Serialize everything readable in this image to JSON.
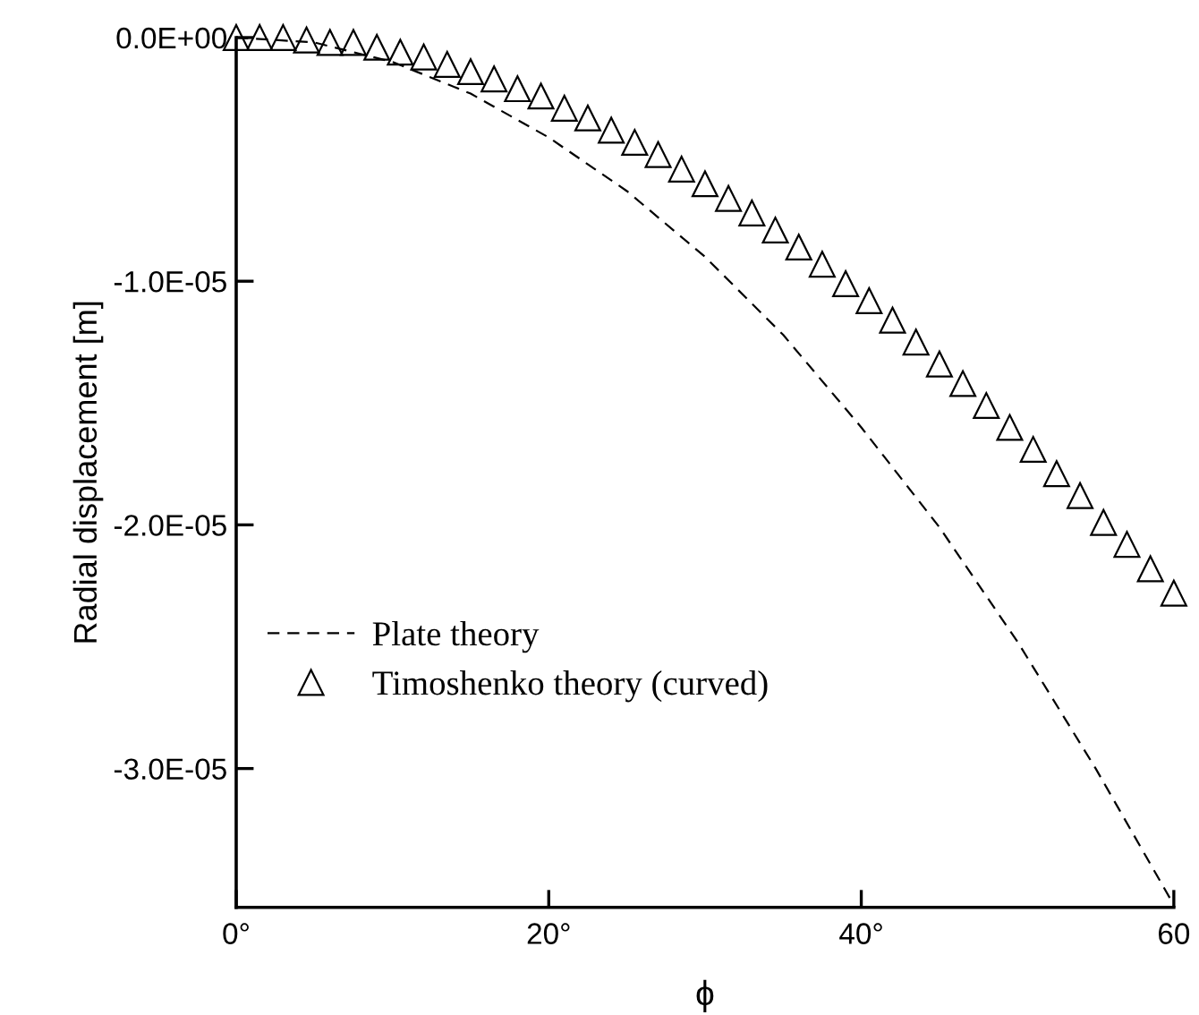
{
  "chart_data": {
    "type": "scatter",
    "xlabel": "ϕ",
    "ylabel": "Radial displacement [m]",
    "xlim": [
      0,
      60
    ],
    "ylim": [
      -3.57e-05,
      0
    ],
    "xticks": [
      {
        "value": 0,
        "label": "0°"
      },
      {
        "value": 20,
        "label": "20°"
      },
      {
        "value": 40,
        "label": "40°"
      },
      {
        "value": 60,
        "label": "60"
      }
    ],
    "yticks": [
      {
        "value": 0,
        "label": "0.0E+00"
      },
      {
        "value": -1e-05,
        "label": "-1.0E-05"
      },
      {
        "value": -2e-05,
        "label": "-2.0E-05"
      },
      {
        "value": -3e-05,
        "label": "-3.0E-05"
      }
    ],
    "grid": false,
    "legend": "bottom left",
    "series": [
      {
        "name": "Plate theory",
        "type": "line",
        "color": "#000000",
        "line_style": "dashed",
        "marker": "none",
        "x": [
          0,
          5,
          10,
          15,
          20,
          25,
          30,
          35,
          40,
          45,
          50,
          55,
          60
        ],
        "values": [
          0,
          -2e-07,
          -1e-06,
          -2.3e-06,
          -4.1e-06,
          -6.3e-06,
          -9e-06,
          -1.22e-05,
          -1.6e-05,
          -2.01e-05,
          -2.48e-05,
          -3e-05,
          -3.56e-05
        ]
      },
      {
        "name": "Timoshenko theory (curved)",
        "color": "#000000",
        "marker": "triangle",
        "x": [
          0,
          1.5,
          3,
          4.5,
          6,
          7.5,
          9,
          10.5,
          12,
          13.5,
          15,
          16.5,
          18,
          19.5,
          21,
          22.5,
          24,
          25.5,
          27,
          28.5,
          30,
          31.5,
          33,
          34.5,
          36,
          37.5,
          39,
          40.5,
          42,
          43.5,
          45,
          46.5,
          48,
          49.5,
          51,
          52.5,
          54,
          55.5,
          57,
          58.5,
          60
        ],
        "values": [
          0,
          0,
          0,
          -1e-07,
          -2e-07,
          -2e-07,
          -4e-07,
          -6e-07,
          -8e-07,
          -1.1e-06,
          -1.4e-06,
          -1.7e-06,
          -2.1e-06,
          -2.4e-06,
          -2.9e-06,
          -3.3e-06,
          -3.8e-06,
          -4.3e-06,
          -4.8e-06,
          -5.4e-06,
          -6e-06,
          -6.6e-06,
          -7.2e-06,
          -7.9e-06,
          -8.6e-06,
          -9.3e-06,
          -1.01e-05,
          -1.08e-05,
          -1.16e-05,
          -1.25e-05,
          -1.34e-05,
          -1.42e-05,
          -1.51e-05,
          -1.6e-05,
          -1.69e-05,
          -1.79e-05,
          -1.88e-05,
          -1.99e-05,
          -2.08e-05,
          -2.18e-05,
          -2.28e-05
        ]
      }
    ]
  }
}
